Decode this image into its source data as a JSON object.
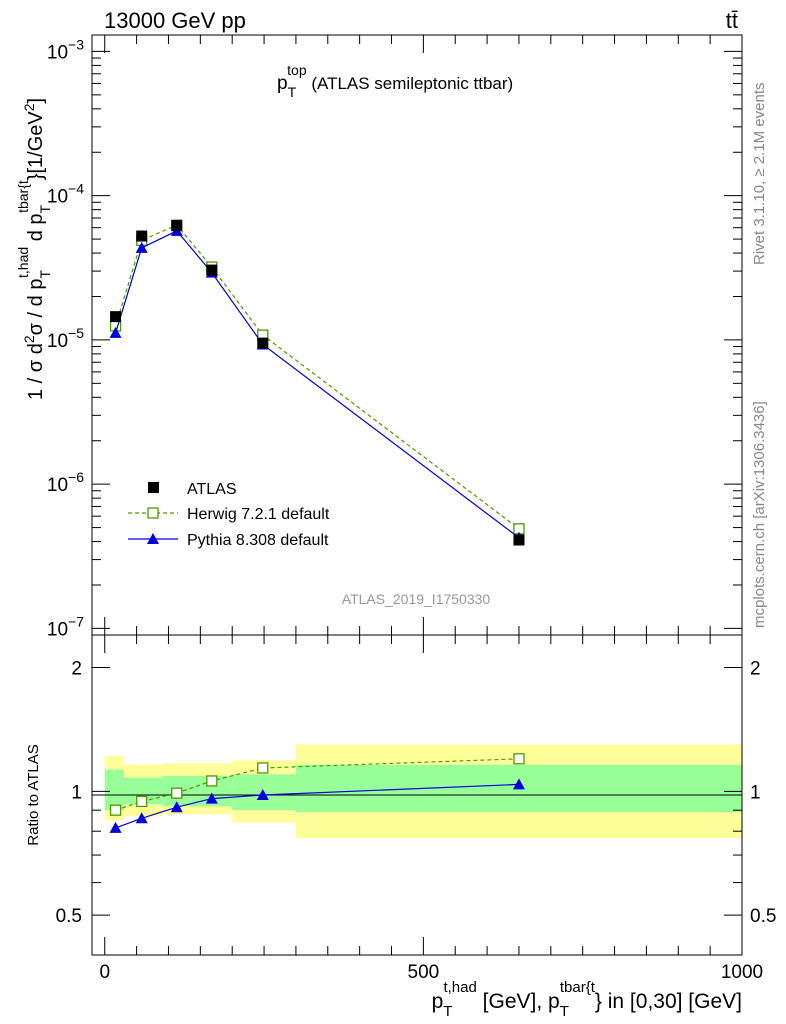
{
  "header": {
    "energy_label": "13000 GeV pp",
    "process_label": "tt̄"
  },
  "side_labels": {
    "rivet": "Rivet 3.1.10, ≥ 2.1M events",
    "mcplots": "mcplots.cern.ch [arXiv:1306.3436]"
  },
  "chart_data": [
    {
      "type": "scatter",
      "panel": "main",
      "title": {
        "main": "p",
        "sup": "top",
        "sub": "T",
        "rest": " (ATLAS semileptonic ttbar)"
      },
      "analysis_id": "ATLAS_2019_I1750330",
      "ylabel": "1 / σ d²σ / d p_T^{t,had} d p_T^{tbar{t}}[1/GeV²]",
      "x_scale": "linear",
      "y_scale": "log",
      "xlim": [
        -20,
        1000
      ],
      "ylim": [
        9e-08,
        0.0013
      ],
      "y_tick_labels": [
        {
          "value": 0.001,
          "base": "10",
          "exp": "−3"
        },
        {
          "value": 0.0001,
          "base": "10",
          "exp": "−4"
        },
        {
          "value": 1e-05,
          "base": "10",
          "exp": "−5"
        },
        {
          "value": 1e-06,
          "base": "10",
          "exp": "−6"
        },
        {
          "value": 1e-07,
          "base": "10",
          "exp": "−7"
        }
      ],
      "legend_position": "lower-left",
      "series": [
        {
          "name": "ATLAS",
          "marker": "filled-square",
          "color": "#000000",
          "x": [
            17,
            58,
            113,
            168,
            248,
            650
          ],
          "y": [
            1.45e-05,
            5.25e-05,
            6.2e-05,
            3.05e-05,
            9.5e-06,
            4.1e-07
          ]
        },
        {
          "name": "Herwig 7.2.1 default",
          "marker": "open-square",
          "line": "dashed",
          "color": "#4a9a00",
          "x": [
            17,
            58,
            113,
            168,
            248,
            650
          ],
          "y": [
            1.25e-05,
            4.9e-05,
            6.25e-05,
            3.2e-05,
            1.08e-05,
            4.9e-07
          ]
        },
        {
          "name": "Pythia 8.308 default",
          "marker": "filled-triangle",
          "line": "solid",
          "color": "#0000dd",
          "x": [
            17,
            58,
            113,
            168,
            248,
            650
          ],
          "y": [
            1.12e-05,
            4.35e-05,
            5.7e-05,
            2.93e-05,
            9.3e-06,
            4.25e-07
          ]
        }
      ]
    },
    {
      "type": "scatter",
      "panel": "ratio",
      "ylabel": "Ratio to ATLAS",
      "xlabel": {
        "p1": "p",
        "sub1": "T",
        "sup1": "t,had",
        "mid": " [GeV], p",
        "sub2": "T",
        "sup2": "tbar{t",
        "rest": "} in [0,30] [GeV]"
      },
      "x_scale": "linear",
      "y_scale": "log",
      "xlim": [
        -20,
        1000
      ],
      "ylim": [
        0.4,
        2.4
      ],
      "x_tick_labels": [
        0,
        500,
        1000
      ],
      "y_tick_labels": [
        0.5,
        1,
        2
      ],
      "bands": {
        "edges": [
          0,
          30,
          90,
          200,
          300,
          1000
        ],
        "inner": [
          [
            0.9,
            1.13
          ],
          [
            0.93,
            1.08
          ],
          [
            0.92,
            1.09
          ],
          [
            0.9,
            1.1
          ],
          [
            0.89,
            1.16
          ]
        ],
        "outer": [
          [
            0.85,
            1.22
          ],
          [
            0.87,
            1.16
          ],
          [
            0.88,
            1.17
          ],
          [
            0.84,
            1.19
          ],
          [
            0.77,
            1.3
          ]
        ],
        "inner_color": "#99ff99",
        "outer_color": "#ffff99"
      },
      "series": [
        {
          "name": "Herwig 7.2.1 default",
          "marker": "open-square",
          "line": "dashed",
          "color": "#4a9a00",
          "x": [
            17,
            58,
            113,
            168,
            248,
            650
          ],
          "y": [
            0.9,
            0.945,
            0.99,
            1.06,
            1.14,
            1.2
          ]
        },
        {
          "name": "Pythia 8.308 default",
          "marker": "filled-triangle",
          "line": "solid",
          "color": "#0000dd",
          "x": [
            17,
            58,
            113,
            168,
            248,
            650
          ],
          "y": [
            0.815,
            0.86,
            0.915,
            0.96,
            0.98,
            1.04
          ]
        }
      ]
    }
  ]
}
